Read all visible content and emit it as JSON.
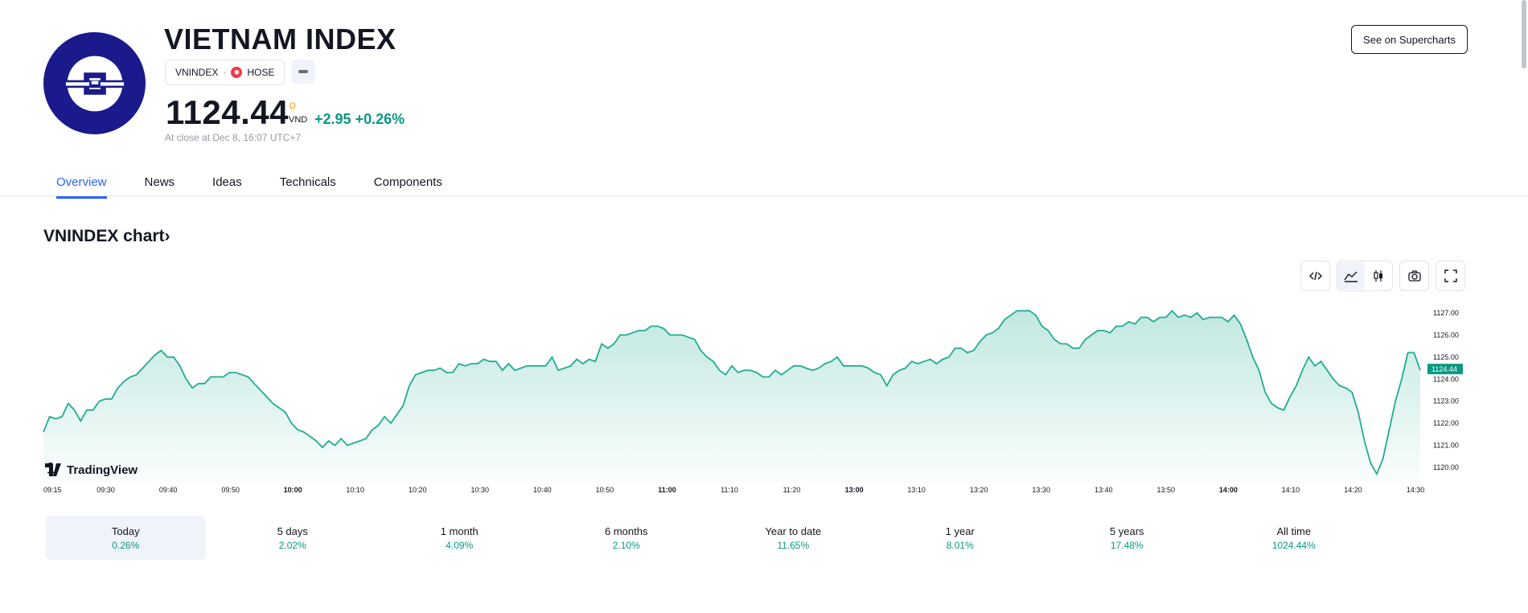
{
  "header": {
    "title": "VIETNAM INDEX",
    "symbol": "VNINDEX",
    "exchange": "HOSE",
    "price": "1124.44",
    "price_flag": "D",
    "currency": "VND",
    "change": "+2.95",
    "change_pct": "+0.26%",
    "close_note": "At close at Dec 8, 16:07 UTC+7",
    "supercharts_button": "See on Supercharts"
  },
  "tabs": [
    "Overview",
    "News",
    "Ideas",
    "Technicals",
    "Components"
  ],
  "chart_section": {
    "heading": "VNINDEX chart",
    "chevron": "›",
    "watermark": "TradingView"
  },
  "toolbar": {
    "icons": [
      "embed-code-icon",
      "line-chart-icon",
      "candles-icon",
      "camera-icon",
      "fullscreen-icon"
    ]
  },
  "periods": [
    {
      "label": "Today",
      "value": "0.26%"
    },
    {
      "label": "5 days",
      "value": "2.02%"
    },
    {
      "label": "1 month",
      "value": "4.09%"
    },
    {
      "label": "6 months",
      "value": "2.10%"
    },
    {
      "label": "Year to date",
      "value": "11.65%"
    },
    {
      "label": "1 year",
      "value": "8.01%"
    },
    {
      "label": "5 years",
      "value": "17.48%"
    },
    {
      "label": "All time",
      "value": "1024.44%"
    }
  ],
  "colors": {
    "line": "#22ab94",
    "up": "#089981",
    "accent": "#2962ff",
    "logo_bg": "#1a1a8c"
  },
  "chart_data": {
    "type": "area",
    "title": "",
    "xlabel": "",
    "ylabel": "",
    "ylim": [
      1119.5,
      1127.5
    ],
    "y_ticks": [
      "1127.00",
      "1126.00",
      "1125.00",
      "1124.00",
      "1123.00",
      "1122.00",
      "1121.00",
      "1120.00"
    ],
    "last_value_label": "1124.44",
    "x_ticks": [
      "09:15",
      "09:30",
      "09:40",
      "09:50",
      "10:00",
      "10:10",
      "10:20",
      "10:30",
      "10:40",
      "10:50",
      "11:00",
      "11:10",
      "11:20",
      "13:00",
      "13:10",
      "13:20",
      "13:30",
      "13:40",
      "13:50",
      "14:00",
      "14:10",
      "14:20",
      "14:30"
    ],
    "x_ticks_bold": [
      "10:00",
      "11:00",
      "13:00",
      "14:00"
    ],
    "series": [
      {
        "values": [
          1121.6,
          1122.3,
          1122.2,
          1122.3,
          1122.9,
          1122.6,
          1122.1,
          1122.6,
          1122.6,
          1123.0,
          1123.1,
          1123.1,
          1123.6,
          1123.9,
          1124.1,
          1124.2,
          1124.5,
          1124.8,
          1125.1,
          1125.3,
          1125.0,
          1125.0,
          1124.6,
          1124.0,
          1123.6,
          1123.8,
          1123.8,
          1124.1,
          1124.1,
          1124.1,
          1124.3,
          1124.3,
          1124.2,
          1124.1,
          1123.8,
          1123.5,
          1123.2,
          1122.9,
          1122.7,
          1122.5,
          1122.0,
          1121.7,
          1121.6,
          1121.4,
          1121.2,
          1120.9,
          1121.2,
          1121.0,
          1121.3,
          1121.0,
          1121.1,
          1121.2,
          1121.3,
          1121.7,
          1121.9,
          1122.3,
          1122.0,
          1122.4,
          1122.8,
          1123.7,
          1124.2,
          1124.3,
          1124.4,
          1124.4,
          1124.5,
          1124.3,
          1124.3,
          1124.7,
          1124.6,
          1124.7,
          1124.7,
          1124.9,
          1124.8,
          1124.8,
          1124.4,
          1124.7,
          1124.4,
          1124.5,
          1124.6,
          1124.6,
          1124.6,
          1124.6,
          1125.0,
          1124.4,
          1124.5,
          1124.6,
          1124.9,
          1124.7,
          1124.9,
          1124.8,
          1125.6,
          1125.4,
          1125.6,
          1126.0,
          1126.0,
          1126.1,
          1126.2,
          1126.2,
          1126.4,
          1126.4,
          1126.3,
          1126.0,
          1126.0,
          1126.0,
          1125.9,
          1125.8,
          1125.3,
          1125.0,
          1124.8,
          1124.4,
          1124.2,
          1124.6,
          1124.3,
          1124.4,
          1124.4,
          1124.3,
          1124.1,
          1124.1,
          1124.4,
          1124.2,
          1124.4,
          1124.6,
          1124.6,
          1124.5,
          1124.4,
          1124.5,
          1124.7,
          1124.8,
          1125.0,
          1124.6,
          1124.6,
          1124.6,
          1124.6,
          1124.5,
          1124.3,
          1124.2,
          1123.7,
          1124.2,
          1124.4,
          1124.5,
          1124.8,
          1124.7,
          1124.8,
          1124.9,
          1124.7,
          1124.9,
          1125.0,
          1125.4,
          1125.4,
          1125.2,
          1125.3,
          1125.7,
          1126.0,
          1126.1,
          1126.3,
          1126.7,
          1126.9,
          1127.1,
          1127.1,
          1127.1,
          1126.9,
          1126.4,
          1126.2,
          1125.8,
          1125.6,
          1125.6,
          1125.4,
          1125.4,
          1125.8,
          1126.0,
          1126.2,
          1126.2,
          1126.1,
          1126.4,
          1126.4,
          1126.6,
          1126.5,
          1126.8,
          1126.8,
          1126.6,
          1126.8,
          1126.8,
          1127.1,
          1126.8,
          1126.9,
          1126.8,
          1127.0,
          1126.7,
          1126.8,
          1126.8,
          1126.8,
          1126.6,
          1126.9,
          1126.5,
          1125.8,
          1125.0,
          1124.4,
          1123.4,
          1122.9,
          1122.7,
          1122.6,
          1123.2,
          1123.7,
          1124.4,
          1125.0,
          1124.6,
          1124.8,
          1124.4,
          1124.0,
          1123.7,
          1123.6,
          1123.4,
          1122.5,
          1121.2,
          1120.2,
          1119.7,
          1120.4,
          1121.7,
          1123.0,
          1124.0,
          1125.2,
          1125.2,
          1124.4
        ]
      }
    ]
  }
}
